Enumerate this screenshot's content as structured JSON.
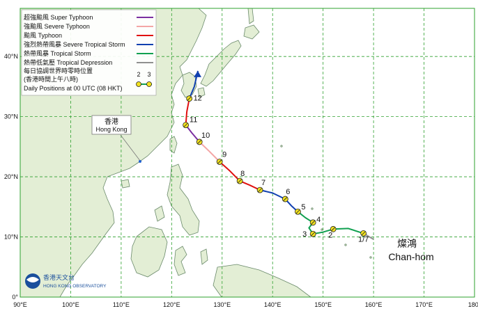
{
  "map": {
    "lon_ticks": [
      "90°E",
      "100°E",
      "110°E",
      "120°E",
      "130°E",
      "140°E",
      "150°E",
      "160°E",
      "170°E",
      "180°"
    ],
    "lat_ticks": [
      "0°",
      "10°N",
      "20°N",
      "30°N",
      "40°N"
    ]
  },
  "legend": {
    "items": [
      {
        "label": "超強颱風  Super Typhoon",
        "color": "#7b2fa0"
      },
      {
        "label": "強颱風  Severe Typhoon",
        "color": "#f4a6a6"
      },
      {
        "label": "颱風  Typhoon",
        "color": "#e01010"
      },
      {
        "label": "強烈熱帶風暴  Severe Tropical Storm",
        "color": "#1040b0"
      },
      {
        "label": "熱帶風暴  Tropical Storm",
        "color": "#10a050"
      },
      {
        "label": "熱帶低氣壓  Tropical Depression",
        "color": "#909090"
      }
    ],
    "daily_line1": "每日協調世界時零時位置",
    "daily_line2": "(香港時間上午八時)",
    "daily_line3": "Daily Positions at 00 UTC (08 HKT)",
    "sample_num_1": "2",
    "sample_num_2": "3"
  },
  "hong_kong": {
    "zh": "香港",
    "en": "Hong Kong"
  },
  "storm": {
    "zh": "燦鴻",
    "en": "Chan-hom"
  },
  "track_days": [
    {
      "label": "1/7",
      "lon": 158.0,
      "lat": 10.6
    },
    {
      "label": "2",
      "lon": 152.0,
      "lat": 11.3
    },
    {
      "label": "3",
      "lon": 148.0,
      "lat": 10.5
    },
    {
      "label": "4",
      "lon": 148.0,
      "lat": 12.4
    },
    {
      "label": "5",
      "lon": 145.0,
      "lat": 14.2
    },
    {
      "label": "6",
      "lon": 142.5,
      "lat": 16.3
    },
    {
      "label": "7",
      "lon": 137.5,
      "lat": 17.8
    },
    {
      "label": "8",
      "lon": 133.5,
      "lat": 19.3
    },
    {
      "label": "9",
      "lon": 129.5,
      "lat": 22.5
    },
    {
      "label": "10",
      "lon": 125.5,
      "lat": 25.8
    },
    {
      "label": "11",
      "lon": 122.8,
      "lat": 28.6
    },
    {
      "label": "12",
      "lon": 123.5,
      "lat": 33.0
    }
  ],
  "colors": {
    "ocean": "#ffffff",
    "land": "#e3eed5",
    "coast": "#6a8a6a",
    "grid": "#2ea02e"
  },
  "logo": {
    "zh": "香港天文台",
    "en": "HONG KONG OBSERVATORY"
  }
}
